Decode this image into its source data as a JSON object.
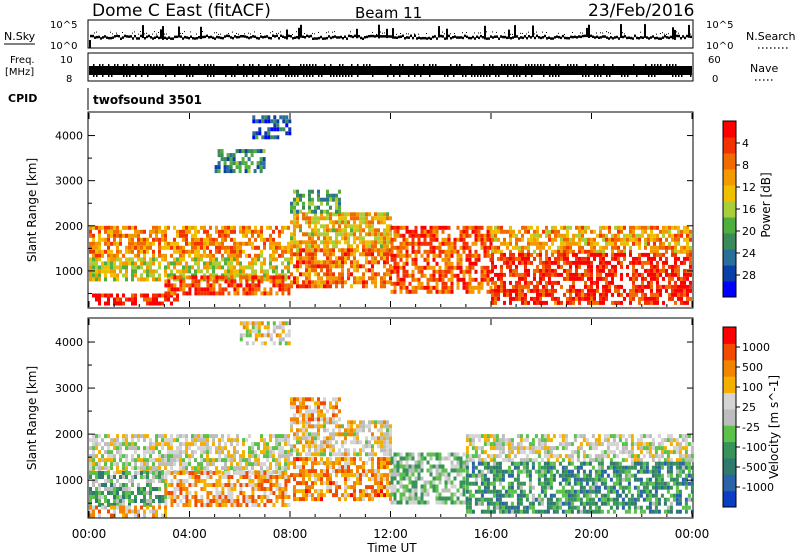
{
  "header": {
    "station": "Dome C East (fitACF)",
    "beam": "Beam 11",
    "date": "23/Feb/2016"
  },
  "strips": {
    "nsky_label": "N.Sky",
    "nsky_ticks": [
      "10^5",
      "10^0"
    ],
    "nsearch_label": "N.Search",
    "nsearch_ticks": [
      "10^5",
      "10^0"
    ],
    "freq_label": "Freq.",
    "freq_unit": "[MHz]",
    "freq_ticks": [
      "10",
      "8"
    ],
    "nave_label": "Nave",
    "nave_ticks": [
      "60",
      "0"
    ],
    "cpid_label": "CPID",
    "cpid_value": "twofsound 3501"
  },
  "colors": {
    "power": [
      "#0000ff",
      "#0b3fa8",
      "#2a6e9a",
      "#3a8a5a",
      "#4fae3c",
      "#a8cf3a",
      "#f0c000",
      "#f39a00",
      "#f06a00",
      "#f23200",
      "#ff0000"
    ],
    "velocity": [
      "#0a3fc4",
      "#2a63a8",
      "#2f7a6c",
      "#38935a",
      "#5cc14a",
      "#bdbdbd",
      "#d4d4d4",
      "#f3b000",
      "#f28400",
      "#f24a00",
      "#ff0000"
    ]
  },
  "chart_data": [
    {
      "type": "heatmap",
      "name": "power",
      "xlabel": "",
      "ylabel": "Slant Range [km]",
      "xlim": [
        0,
        24
      ],
      "ylim": [
        200,
        4500
      ],
      "yticks": [
        1000,
        2000,
        3000,
        4000
      ],
      "xticks": [
        "00:00",
        "04:00",
        "08:00",
        "12:00",
        "16:00",
        "20:00",
        "00:00"
      ],
      "colorbar_label": "Power [dB]",
      "colorbar_ticks": [
        "4",
        "8",
        "12",
        "16",
        "20",
        "24",
        "28"
      ],
      "regions": [
        {
          "x0": 0.0,
          "x1": 8.0,
          "y0": 1300,
          "y1": 2000,
          "level": 0.72
        },
        {
          "x0": 0.0,
          "x1": 8.0,
          "y0": 800,
          "y1": 1300,
          "level": 0.55
        },
        {
          "x0": 0.0,
          "x1": 3.5,
          "y0": 250,
          "y1": 500,
          "level": 0.95
        },
        {
          "x0": 3.0,
          "x1": 8.0,
          "y0": 500,
          "y1": 900,
          "level": 0.85
        },
        {
          "x0": 8.0,
          "x1": 12.0,
          "y0": 1500,
          "y1": 2300,
          "level": 0.62
        },
        {
          "x0": 8.0,
          "x1": 12.0,
          "y0": 700,
          "y1": 1500,
          "level": 0.78
        },
        {
          "x0": 12.0,
          "x1": 16.0,
          "y0": 500,
          "y1": 2000,
          "level": 0.82
        },
        {
          "x0": 16.0,
          "x1": 24.0,
          "y0": 1400,
          "y1": 2000,
          "level": 0.68
        },
        {
          "x0": 16.0,
          "x1": 24.0,
          "y0": 300,
          "y1": 1400,
          "level": 0.9
        },
        {
          "x0": 8.0,
          "x1": 10.0,
          "y0": 2300,
          "y1": 2800,
          "level": 0.4
        },
        {
          "x0": 5.0,
          "x1": 7.0,
          "y0": 3200,
          "y1": 3700,
          "level": 0.3
        },
        {
          "x0": 6.5,
          "x1": 8.0,
          "y0": 4000,
          "y1": 4450,
          "level": 0.2
        }
      ]
    },
    {
      "type": "heatmap",
      "name": "velocity",
      "xlabel": "Time UT",
      "ylabel": "Slant Range [km]",
      "xlim": [
        0,
        24
      ],
      "ylim": [
        200,
        4500
      ],
      "yticks": [
        1000,
        2000,
        3000,
        4000
      ],
      "xticks": [
        "00:00",
        "04:00",
        "08:00",
        "12:00",
        "16:00",
        "20:00",
        "00:00"
      ],
      "colorbar_label": "Velocity [m s^-1]",
      "colorbar_ticks": [
        "1000",
        "500",
        "100",
        "25",
        "-25",
        "-100",
        "-500",
        "-1000"
      ],
      "regions": [
        {
          "x0": 0.0,
          "x1": 8.0,
          "y0": 1200,
          "y1": 2000,
          "level": 0.55
        },
        {
          "x0": 0.0,
          "x1": 3.0,
          "y0": 500,
          "y1": 1200,
          "level": 0.38
        },
        {
          "x0": 3.0,
          "x1": 8.0,
          "y0": 500,
          "y1": 1200,
          "level": 0.72
        },
        {
          "x0": 0.0,
          "x1": 3.0,
          "y0": 250,
          "y1": 450,
          "level": 0.7
        },
        {
          "x0": 8.0,
          "x1": 12.0,
          "y0": 1600,
          "y1": 2300,
          "level": 0.6
        },
        {
          "x0": 8.0,
          "x1": 12.0,
          "y0": 600,
          "y1": 1500,
          "level": 0.75
        },
        {
          "x0": 12.0,
          "x1": 15.0,
          "y0": 500,
          "y1": 1600,
          "level": 0.45
        },
        {
          "x0": 15.0,
          "x1": 24.0,
          "y0": 1400,
          "y1": 2000,
          "level": 0.55
        },
        {
          "x0": 15.0,
          "x1": 24.0,
          "y0": 350,
          "y1": 1400,
          "level": 0.3
        },
        {
          "x0": 8.0,
          "x1": 10.0,
          "y0": 2300,
          "y1": 2800,
          "level": 0.72
        },
        {
          "x0": 6.0,
          "x1": 8.0,
          "y0": 4000,
          "y1": 4450,
          "level": 0.6
        }
      ]
    }
  ]
}
